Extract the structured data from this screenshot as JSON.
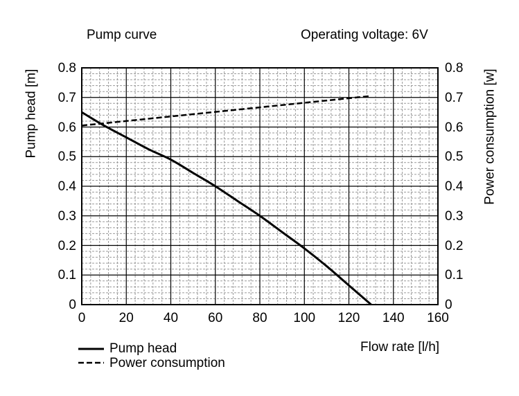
{
  "title_left": "Pump curve",
  "title_right": "Operating voltage: 6V",
  "chart_data": {
    "type": "line",
    "xlabel": "Flow rate [l/h]",
    "ylabel": "Pump head [m]",
    "y2label": "Power consumption [w]",
    "xlim": [
      0,
      160
    ],
    "ylim": [
      0,
      0.8
    ],
    "y2lim": [
      0,
      0.8
    ],
    "x_ticks": [
      "0",
      "20",
      "40",
      "60",
      "80",
      "100",
      "120",
      "140",
      "160"
    ],
    "y_ticks": [
      "0",
      "0.1",
      "0.2",
      "0.3",
      "0.4",
      "0.5",
      "0.6",
      "0.7",
      "0.8"
    ],
    "y2_ticks": [
      "0",
      "0.1",
      "0.2",
      "0.3",
      "0.4",
      "0.5",
      "0.6",
      "0.7",
      "0.8"
    ],
    "grid": true,
    "legend_position": "bottom-left",
    "series": [
      {
        "name": "Pump head",
        "axis": "left",
        "style": "solid",
        "x": [
          0,
          10,
          20,
          30,
          40,
          50,
          60,
          70,
          80,
          90,
          100,
          110,
          120,
          130
        ],
        "y": [
          0.65,
          0.605,
          0.565,
          0.525,
          0.49,
          0.445,
          0.4,
          0.35,
          0.3,
          0.245,
          0.19,
          0.13,
          0.065,
          0.0
        ]
      },
      {
        "name": "Power consumption",
        "axis": "right",
        "style": "dashed",
        "x": [
          0,
          130
        ],
        "y": [
          0.605,
          0.705
        ]
      }
    ]
  }
}
